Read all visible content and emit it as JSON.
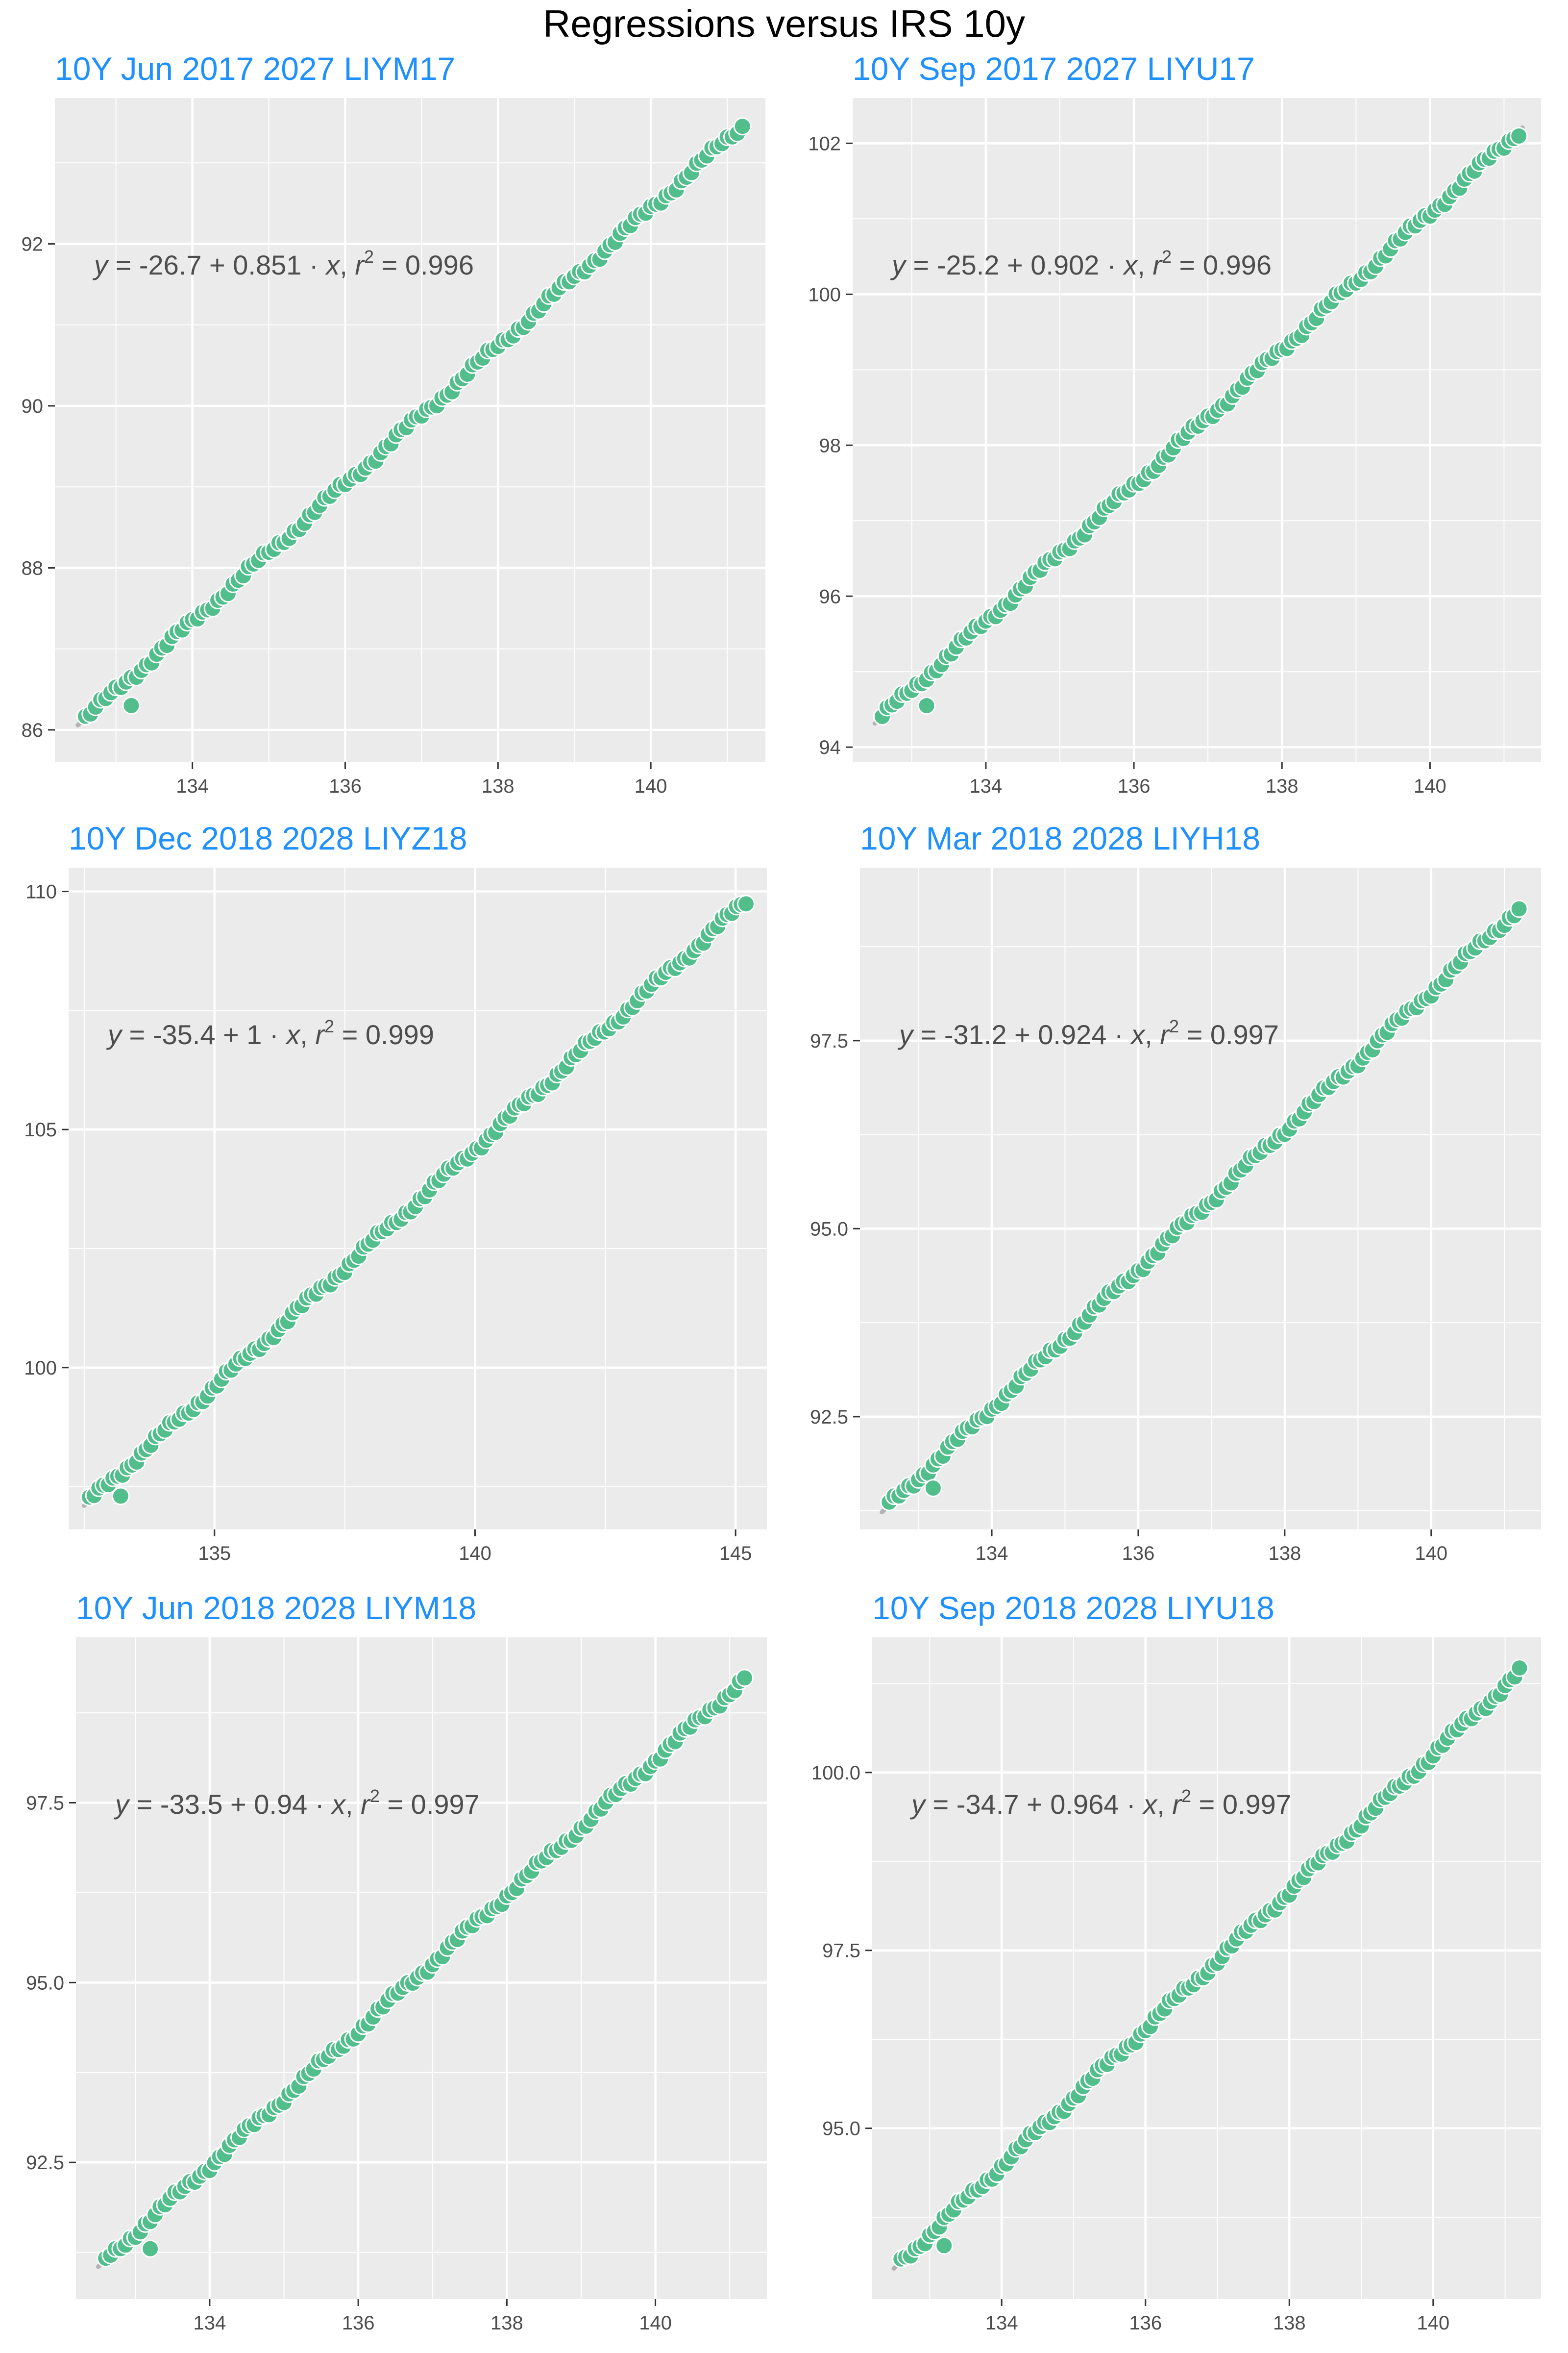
{
  "title": "Regressions versus IRS 10y",
  "colors": {
    "point": "#52be8c",
    "point_edge": "#ffffff",
    "line": "#b3b3b3",
    "panel_bg": "#ebebeb",
    "grid": "#ffffff",
    "title": "#1e90ff",
    "text": "#4d4d4d"
  },
  "chart_data": [
    {
      "type": "scatter",
      "title": "10Y Jun 2017 2027 LIYM17",
      "equation": {
        "intercept": "-26.7",
        "slope": "0.851",
        "r2": "0.996"
      },
      "xlim": [
        132.2,
        141.5
      ],
      "ylim": [
        85.6,
        93.8
      ],
      "xticks": [
        134,
        136,
        138,
        140
      ],
      "xtick_labels": [
        "134",
        "136",
        "138",
        "140"
      ],
      "yticks": [
        86,
        88,
        90,
        92
      ],
      "ytick_labels": [
        "86",
        "88",
        "90",
        "92"
      ],
      "regression": {
        "intercept": -26.7,
        "slope": 0.851
      },
      "points": {
        "x_start": 132.6,
        "x_end": 141.2,
        "n": 130
      },
      "outlier": [
        133.2,
        86.3
      ]
    },
    {
      "type": "scatter",
      "title": "10Y Sep 2017 2027 LIYU17",
      "equation": {
        "intercept": "-25.2",
        "slope": "0.902",
        "r2": "0.996"
      },
      "xlim": [
        132.2,
        141.5
      ],
      "ylim": [
        93.8,
        102.6
      ],
      "xticks": [
        134,
        136,
        138,
        140
      ],
      "xtick_labels": [
        "134",
        "136",
        "138",
        "140"
      ],
      "yticks": [
        94,
        96,
        98,
        100,
        102
      ],
      "ytick_labels": [
        "94",
        "96",
        "98",
        "100",
        "102"
      ],
      "regression": {
        "intercept": -25.2,
        "slope": 0.902
      },
      "points": {
        "x_start": 132.6,
        "x_end": 141.2,
        "n": 130
      },
      "outlier": [
        133.2,
        94.55
      ]
    },
    {
      "type": "scatter",
      "title": "10Y Dec 2018 2028 LIYZ18",
      "equation": {
        "intercept": "-35.4",
        "slope": "1",
        "r2": "0.999"
      },
      "xlim": [
        132.2,
        145.6
      ],
      "ylim": [
        96.6,
        110.5
      ],
      "xticks": [
        135,
        140,
        145
      ],
      "xtick_labels": [
        "135",
        "140",
        "145"
      ],
      "yticks": [
        100,
        105,
        110
      ],
      "ytick_labels": [
        "100",
        "105",
        "110"
      ],
      "regression": {
        "intercept": -35.4,
        "slope": 1.0
      },
      "points": {
        "x_start": 132.6,
        "x_end": 145.2,
        "n": 140
      },
      "outlier": [
        133.2,
        97.3
      ]
    },
    {
      "type": "scatter",
      "title": "10Y Mar 2018 2028 LIYH18",
      "equation": {
        "intercept": "-31.2",
        "slope": "0.924",
        "r2": "0.997"
      },
      "xlim": [
        132.2,
        141.5
      ],
      "ylim": [
        91.0,
        99.8
      ],
      "xticks": [
        134,
        136,
        138,
        140
      ],
      "xtick_labels": [
        "134",
        "136",
        "138",
        "140"
      ],
      "yticks": [
        92.5,
        95.0,
        97.5
      ],
      "ytick_labels": [
        "92.5",
        "95.0",
        "97.5"
      ],
      "regression": {
        "intercept": -31.2,
        "slope": 0.924
      },
      "points": {
        "x_start": 132.6,
        "x_end": 141.2,
        "n": 130
      },
      "outlier": [
        133.2,
        91.55
      ]
    },
    {
      "type": "scatter",
      "title": "10Y Jun 2018 2028 LIYM18",
      "equation": {
        "intercept": "-33.5",
        "slope": "0.94",
        "r2": "0.997"
      },
      "xlim": [
        132.2,
        141.5
      ],
      "ylim": [
        90.6,
        99.8
      ],
      "xticks": [
        134,
        136,
        138,
        140
      ],
      "xtick_labels": [
        "134",
        "136",
        "138",
        "140"
      ],
      "yticks": [
        92.5,
        95.0,
        97.5
      ],
      "ytick_labels": [
        "92.5",
        "95.0",
        "97.5"
      ],
      "regression": {
        "intercept": -33.5,
        "slope": 0.94
      },
      "points": {
        "x_start": 132.6,
        "x_end": 141.2,
        "n": 130
      },
      "outlier": [
        133.2,
        91.3
      ]
    },
    {
      "type": "scatter",
      "title": "10Y Sep 2018 2028 LIYU18",
      "equation": {
        "intercept": "-34.7",
        "slope": "0.964",
        "r2": "0.997"
      },
      "xlim": [
        132.2,
        141.5
      ],
      "ylim": [
        92.6,
        101.9
      ],
      "xticks": [
        134,
        136,
        138,
        140
      ],
      "xtick_labels": [
        "134",
        "136",
        "138",
        "140"
      ],
      "yticks": [
        95.0,
        97.5,
        100.0
      ],
      "ytick_labels": [
        "95.0",
        "97.5",
        "100.0"
      ],
      "regression": {
        "intercept": -34.7,
        "slope": 0.964
      },
      "points": {
        "x_start": 132.6,
        "x_end": 141.2,
        "n": 130
      },
      "outlier": [
        133.2,
        93.35
      ]
    }
  ]
}
